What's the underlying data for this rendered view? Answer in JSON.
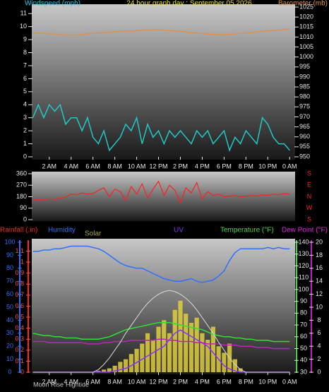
{
  "chart_data": [
    {
      "type": "line",
      "title": "24 hour graph day : September 05 2026",
      "x": [
        0.5,
        1,
        1.5,
        2,
        2.5,
        3,
        3.5,
        4,
        4.5,
        5,
        5.5,
        6,
        6.5,
        7,
        7.5,
        8,
        8.5,
        9,
        9.5,
        10,
        10.5,
        11,
        11.5,
        12,
        12.5,
        13,
        13.5,
        14,
        14.5,
        15,
        15.5,
        16,
        16.5,
        17,
        17.5,
        18,
        18.5,
        19,
        19.5,
        20,
        20.5,
        21,
        21.5,
        22,
        22.5,
        23,
        23.5,
        24
      ],
      "xlim": [
        0.4,
        24.5
      ],
      "xticks": [
        {
          "value": 2,
          "label": "2 AM"
        },
        {
          "value": 4,
          "label": "4 AM"
        },
        {
          "value": 6,
          "label": "6 AM"
        },
        {
          "value": 8,
          "label": "8 AM"
        },
        {
          "value": 10,
          "label": "10 AM"
        },
        {
          "value": 12,
          "label": "12 PM"
        },
        {
          "value": 14,
          "label": "2 PM"
        },
        {
          "value": 16,
          "label": "4 PM"
        },
        {
          "value": 18,
          "label": "6 PM"
        },
        {
          "value": 20,
          "label": "8 PM"
        },
        {
          "value": 22,
          "label": "10 PM"
        },
        {
          "value": 24,
          "label": "0 AM"
        }
      ],
      "ylim": [
        0,
        11.5
      ],
      "yticks": [
        0,
        1,
        2,
        3,
        4,
        5,
        6,
        7,
        8,
        9,
        10,
        11
      ],
      "y2lim": [
        950,
        1025
      ],
      "y2ticks": [
        950,
        955,
        960,
        965,
        970,
        975,
        980,
        985,
        990,
        995,
        1000,
        1005,
        1010,
        1015,
        1020,
        1025
      ],
      "series": [
        {
          "name": "Windspeed (mph)",
          "color": "#22c8c8",
          "values": [
            3,
            4,
            3,
            4,
            3.5,
            4,
            2.5,
            3,
            3,
            2,
            3,
            1.5,
            1,
            2,
            0.5,
            1,
            1.5,
            2.5,
            2,
            3,
            1,
            2.5,
            1.5,
            2,
            1,
            2,
            1.5,
            2,
            1.5,
            1,
            2,
            1.5,
            2,
            1,
            1.5,
            2,
            0.5,
            1.5,
            1,
            2,
            1.5,
            1,
            3,
            2.5,
            1.5,
            1,
            1,
            0.5
          ]
        },
        {
          "name": "Barometer (mb)",
          "color": "#e0904c",
          "axis": "y2",
          "values": [
            1012,
            1012,
            1011.8,
            1011.6,
            1011.4,
            1011.2,
            1011,
            1011,
            1011,
            1011.2,
            1011.5,
            1011.8,
            1012,
            1012.2,
            1012.4,
            1012.6,
            1012.8,
            1013,
            1013,
            1013.2,
            1013.4,
            1013.5,
            1013.6,
            1013.7,
            1013.5,
            1013.3,
            1013,
            1012.8,
            1012.5,
            1012.2,
            1012,
            1011.7,
            1011.5,
            1011.3,
            1011.2,
            1011.2,
            1011.3,
            1011.5,
            1011.8,
            1012,
            1012.3,
            1012.6,
            1012.9,
            1013.1,
            1013.3,
            1013.5,
            1013.7,
            1014
          ]
        }
      ]
    },
    {
      "type": "line",
      "x": [
        0.5,
        1,
        1.5,
        2,
        2.5,
        3,
        3.5,
        4,
        4.5,
        5,
        5.5,
        6,
        6.5,
        7,
        7.5,
        8,
        8.5,
        9,
        9.5,
        10,
        10.5,
        11,
        11.5,
        12,
        12.5,
        13,
        13.5,
        14,
        14.5,
        15,
        15.5,
        16,
        16.5,
        17,
        17.5,
        18,
        18.5,
        19,
        19.5,
        20,
        20.5,
        21,
        21.5,
        22,
        22.5,
        23,
        23.5,
        24
      ],
      "xlim": [
        0.4,
        24.5
      ],
      "ylim": [
        0,
        360
      ],
      "yticks": [
        0,
        90,
        180,
        270,
        360
      ],
      "y2ticks": [
        {
          "value": 0,
          "label": "S"
        },
        {
          "value": 90,
          "label": "W"
        },
        {
          "value": 180,
          "label": "N"
        },
        {
          "value": 270,
          "label": "E"
        },
        {
          "value": 360,
          "label": "S"
        }
      ],
      "series": [
        {
          "color": "#ff2020",
          "values": [
            150,
            160,
            155,
            165,
            160,
            170,
            175,
            200,
            195,
            210,
            200,
            205,
            230,
            250,
            180,
            240,
            220,
            150,
            260,
            200,
            280,
            170,
            240,
            300,
            190,
            270,
            230,
            130,
            250,
            210,
            290,
            160,
            220,
            190,
            200,
            180,
            185,
            190,
            180,
            185,
            190,
            185,
            195,
            190,
            200,
            195,
            205,
            200
          ]
        }
      ]
    },
    {
      "type": "line",
      "rain_label": "Rainfall (.in)",
      "annotations": [
        "Moon Rise",
        "Hightide"
      ],
      "x": [
        0.5,
        1,
        1.5,
        2,
        2.5,
        3,
        3.5,
        4,
        4.5,
        5,
        5.5,
        6,
        6.5,
        7,
        7.5,
        8,
        8.5,
        9,
        9.5,
        10,
        10.5,
        11,
        11.5,
        12,
        12.5,
        13,
        13.5,
        14,
        14.5,
        15,
        15.5,
        16,
        16.5,
        17,
        17.5,
        18,
        18.5,
        19,
        19.5,
        20,
        20.5,
        21,
        21.5,
        22,
        22.5,
        23,
        23.5,
        24
      ],
      "xlim": [
        0.4,
        24.5
      ],
      "xticks": [
        {
          "value": 2,
          "label": "2 AM"
        },
        {
          "value": 4,
          "label": "4 AM"
        },
        {
          "value": 6,
          "label": "6 AM"
        },
        {
          "value": 8,
          "label": "8 AM"
        },
        {
          "value": 10,
          "label": "10 AM"
        },
        {
          "value": 12,
          "label": "12 PM"
        },
        {
          "value": 14,
          "label": "2 PM"
        },
        {
          "value": 16,
          "label": "4 PM"
        },
        {
          "value": 18,
          "label": "6 PM"
        },
        {
          "value": 20,
          "label": "8 PM"
        },
        {
          "value": 22,
          "label": "10 PM"
        },
        {
          "value": 24,
          "label": "0 AM"
        }
      ],
      "ylim": [
        0,
        100
      ],
      "yticks": [
        0,
        10,
        20,
        30,
        40,
        50,
        60,
        70,
        80,
        90,
        100
      ],
      "rain_ylim": [
        0,
        1.18
      ],
      "rain_yticks": [
        0,
        0.1,
        0.2,
        0.3,
        0.4,
        0.5,
        0.6,
        0.7,
        0.8,
        0.9,
        1,
        1.1
      ],
      "y2lim": [
        30,
        140
      ],
      "y2ticks": [
        30,
        40,
        50,
        60,
        70,
        80,
        90,
        100,
        110,
        120,
        130,
        140
      ],
      "uv_ylim": [
        0,
        20
      ],
      "uv_yticks": [
        0,
        2,
        4,
        6,
        8,
        10,
        12,
        14,
        16,
        18,
        20
      ],
      "series": [
        {
          "name": "Humidity",
          "color": "#3070ff",
          "values": [
            93,
            93,
            94,
            94,
            95,
            95,
            96,
            97,
            97,
            97,
            97,
            96,
            95,
            93,
            90,
            87,
            84,
            82,
            81,
            80,
            80,
            78,
            76,
            74,
            72,
            71,
            70,
            70,
            71,
            72,
            70,
            69,
            70,
            71,
            74,
            78,
            86,
            92,
            95,
            95,
            95,
            95,
            95,
            96,
            95,
            96,
            95,
            95
          ]
        },
        {
          "name": "Solar",
          "color": "#e0d040",
          "kind": "bars",
          "values": [
            0,
            0,
            0,
            0,
            0,
            0,
            0,
            0,
            0,
            0,
            0,
            0,
            1,
            2,
            3,
            5,
            8,
            10,
            14,
            18,
            22,
            30,
            25,
            35,
            40,
            30,
            48,
            55,
            45,
            38,
            42,
            30,
            25,
            35,
            20,
            15,
            22,
            10,
            3,
            0,
            0,
            0,
            0,
            0,
            0,
            0,
            0,
            0
          ]
        },
        {
          "name": "UV",
          "color": "#8a30ff",
          "axis": "uv",
          "values": [
            0,
            0,
            0,
            0,
            0,
            0,
            0,
            0,
            0,
            0,
            0,
            0,
            0,
            0,
            0,
            0.2,
            0.4,
            0.6,
            1,
            1.5,
            2,
            2.5,
            3,
            3.5,
            4,
            5,
            6,
            6.5,
            6,
            5.5,
            5,
            4.5,
            4,
            3,
            2,
            1,
            0.5,
            0.2,
            0,
            0,
            0,
            0,
            0,
            0,
            0,
            0,
            0,
            0
          ]
        },
        {
          "name": "Temperature (°F)",
          "color": "#30e030",
          "axis": "y2",
          "values": [
            63,
            62,
            61,
            61,
            60,
            60,
            59,
            59,
            59,
            58,
            58,
            58,
            58,
            59,
            60,
            62,
            64,
            66,
            67,
            68,
            69,
            70,
            71,
            72,
            72,
            72,
            71,
            70,
            69,
            68,
            67,
            66,
            64,
            62,
            61,
            60,
            60,
            59,
            59,
            58,
            58,
            57,
            57,
            57,
            56,
            56,
            56,
            56
          ]
        },
        {
          "name": "Dew Point (°F)",
          "color": "#c020c0",
          "axis": "y2",
          "values": [
            56,
            56,
            56,
            55,
            55,
            55,
            55,
            55,
            55,
            55,
            54,
            54,
            54,
            55,
            55,
            56,
            56,
            56,
            57,
            57,
            57,
            57,
            57,
            58,
            58,
            57,
            57,
            56,
            56,
            56,
            55,
            55,
            54,
            54,
            54,
            53,
            53,
            53,
            52,
            52,
            52,
            51,
            51,
            51,
            50,
            50,
            50,
            50
          ]
        },
        {
          "color": "#d8d8d8",
          "values": [
            0,
            0,
            0,
            0,
            0,
            0,
            0,
            0,
            0,
            0,
            0,
            0,
            2,
            6,
            11,
            17,
            23,
            30,
            36,
            42,
            48,
            53,
            57,
            60,
            62,
            63,
            62,
            60,
            57,
            53,
            48,
            42,
            36,
            30,
            23,
            17,
            11,
            6,
            2,
            0,
            0,
            0,
            0,
            0,
            0,
            0,
            0,
            0
          ]
        }
      ]
    }
  ]
}
